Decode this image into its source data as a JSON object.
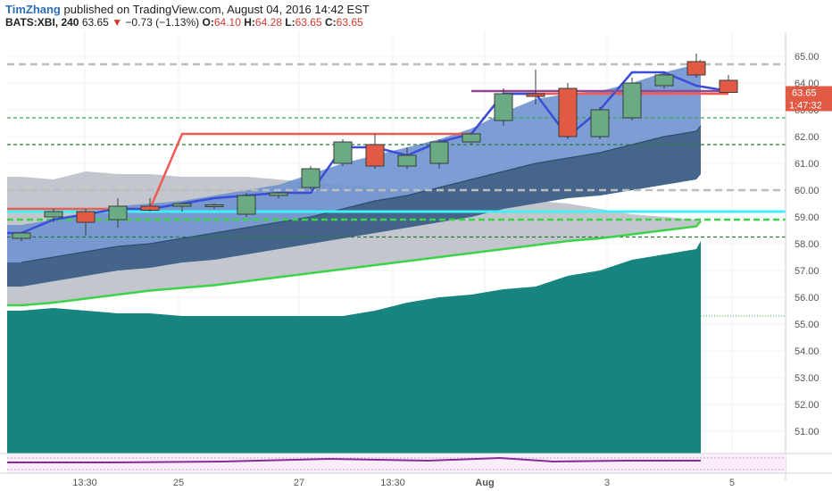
{
  "header": {
    "author": "TimZhang",
    "published_text": "published on TradingView.com, August 04, 2016 14:42 EST",
    "symbol": "BATS:XBI, 240",
    "last": "63.65",
    "change": "−0.73 (−1.13%)",
    "o_label": "O:",
    "o_value": "64.10",
    "h_label": "H:",
    "h_value": "64.28",
    "l_label": "L:",
    "l_value": "63.65",
    "c_label": "C:",
    "c_value": "63.65"
  },
  "colors": {
    "up_candle": "#6aab84",
    "down_candle": "#e05a44",
    "band_blue": "#6f93cf",
    "teal_area": "#17857f",
    "green_line": "#3cd24a",
    "red_line": "#ef5a54",
    "purple_line": "#8e4a8e",
    "blue_line": "#3a4ed8",
    "cyan_line": "#3ff0f5",
    "price_badge": "#e05a44"
  },
  "chart_data": {
    "type": "candlestick",
    "y_axis": {
      "range": [
        50.5,
        65.4
      ],
      "ticks": [
        "65.00",
        "64.00",
        "63.00",
        "62.00",
        "61.00",
        "60.00",
        "59.00",
        "58.00",
        "57.00",
        "56.00",
        "55.00",
        "54.00",
        "53.00",
        "52.00",
        "51.00"
      ]
    },
    "x_axis": {
      "ticks": [
        "13:30",
        "25",
        "27",
        "13:30",
        "Aug",
        "3",
        "5"
      ]
    },
    "last_price_label": "63.65",
    "countdown_label": "1:47:32",
    "candles": [
      {
        "o": 58.2,
        "h": 58.4,
        "l": 58.1,
        "c": 58.4
      },
      {
        "o": 59.0,
        "h": 59.3,
        "l": 58.8,
        "c": 59.2
      },
      {
        "o": 59.2,
        "h": 59.3,
        "l": 58.3,
        "c": 58.8
      },
      {
        "o": 58.9,
        "h": 59.7,
        "l": 58.6,
        "c": 59.4
      },
      {
        "o": 59.4,
        "h": 59.7,
        "l": 59.2,
        "c": 59.25
      },
      {
        "o": 59.4,
        "h": 59.5,
        "l": 59.2,
        "c": 59.5
      },
      {
        "o": 59.4,
        "h": 59.5,
        "l": 59.3,
        "c": 59.45
      },
      {
        "o": 59.1,
        "h": 59.9,
        "l": 59.0,
        "c": 59.8
      },
      {
        "o": 59.8,
        "h": 59.9,
        "l": 59.7,
        "c": 59.9
      },
      {
        "o": 60.1,
        "h": 60.9,
        "l": 60.0,
        "c": 60.8
      },
      {
        "o": 61.0,
        "h": 61.9,
        "l": 60.9,
        "c": 61.8
      },
      {
        "o": 61.7,
        "h": 62.1,
        "l": 60.8,
        "c": 60.9
      },
      {
        "o": 60.9,
        "h": 61.6,
        "l": 60.8,
        "c": 61.3
      },
      {
        "o": 61.0,
        "h": 61.9,
        "l": 60.8,
        "c": 61.8
      },
      {
        "o": 61.8,
        "h": 62.1,
        "l": 61.7,
        "c": 62.1
      },
      {
        "o": 62.6,
        "h": 63.8,
        "l": 62.4,
        "c": 63.6
      },
      {
        "o": 63.6,
        "h": 64.5,
        "l": 63.2,
        "c": 63.5
      },
      {
        "o": 63.8,
        "h": 64.0,
        "l": 61.9,
        "c": 62.0
      },
      {
        "o": 62.0,
        "h": 63.1,
        "l": 61.9,
        "c": 63.0
      },
      {
        "o": 62.7,
        "h": 64.2,
        "l": 62.6,
        "c": 64.0
      },
      {
        "o": 63.9,
        "h": 64.4,
        "l": 63.8,
        "c": 64.3
      },
      {
        "o": 64.8,
        "h": 65.1,
        "l": 64.2,
        "c": 64.3
      },
      {
        "o": 64.1,
        "h": 64.3,
        "l": 63.65,
        "c": 63.65
      }
    ],
    "horizontal_levels": [
      {
        "value": 64.7,
        "color": "#bdbdbd",
        "style": "dashed-wide"
      },
      {
        "value": 62.7,
        "color": "#37a84a",
        "style": "dashed"
      },
      {
        "value": 61.7,
        "color": "#2a7a3a",
        "style": "dashed"
      },
      {
        "value": 60.0,
        "color": "#bdbdbd",
        "style": "dashed-wide"
      },
      {
        "value": 59.2,
        "color": "#3ff0f5",
        "style": "solid"
      },
      {
        "value": 58.9,
        "color": "#3cd24a",
        "style": "dashed-bold"
      },
      {
        "value": 58.25,
        "color": "#2a7a3a",
        "style": "dashed"
      }
    ],
    "short_level": {
      "value": 55.3,
      "color": "#37a84a",
      "style": "dotted"
    },
    "red_line": [
      59.3,
      59.3,
      59.3,
      59.3,
      59.3,
      62.1,
      62.1,
      62.1,
      62.1,
      62.1,
      62.1,
      62.1,
      62.1,
      62.1,
      62.1,
      63.6,
      63.6,
      63.6,
      63.6,
      63.6,
      63.6,
      63.6,
      63.6
    ],
    "blue_line": [
      58.4,
      58.9,
      59.1,
      59.3,
      59.3,
      59.5,
      59.7,
      59.8,
      59.9,
      59.9,
      61.6,
      61.6,
      61.3,
      61.8,
      62.1,
      63.6,
      63.6,
      62.0,
      63.0,
      64.4,
      64.4,
      63.9,
      63.7
    ],
    "purple_line": [
      63.7,
      63.7,
      63.7,
      63.7,
      63.7,
      63.7,
      63.7,
      63.7,
      63.7
    ],
    "band_upper": [
      58.7,
      58.9,
      59.1,
      59.4,
      59.5,
      59.6,
      59.8,
      60.0,
      60.2,
      60.6,
      61.0,
      61.3,
      61.6,
      61.9,
      62.3,
      62.9,
      63.4,
      63.6,
      63.7,
      64.0,
      64.4,
      64.7,
      64.9
    ],
    "band_mid": [
      57.3,
      57.5,
      57.7,
      57.9,
      58.0,
      58.2,
      58.4,
      58.6,
      58.8,
      59.0,
      59.3,
      59.6,
      59.8,
      60.1,
      60.4,
      60.7,
      61.0,
      61.2,
      61.4,
      61.7,
      62.0,
      62.2,
      62.4
    ],
    "band_lower": [
      56.4,
      56.6,
      56.8,
      57.0,
      57.1,
      57.3,
      57.4,
      57.6,
      57.8,
      58.0,
      58.2,
      58.4,
      58.6,
      58.8,
      59.0,
      59.3,
      59.5,
      59.7,
      59.8,
      60.0,
      60.2,
      60.4,
      60.6
    ],
    "ma_green": [
      55.7,
      55.8,
      55.95,
      56.1,
      56.25,
      56.35,
      56.45,
      56.6,
      56.75,
      56.9,
      57.05,
      57.2,
      57.35,
      57.5,
      57.65,
      57.8,
      57.95,
      58.1,
      58.2,
      58.35,
      58.5,
      58.65,
      58.85
    ],
    "teal_top": [
      55.5,
      55.6,
      55.5,
      55.4,
      55.4,
      55.3,
      55.3,
      55.3,
      55.3,
      55.3,
      55.3,
      55.5,
      55.8,
      56.0,
      56.1,
      56.3,
      56.4,
      56.8,
      57.0,
      57.4,
      57.6,
      57.8,
      58.1
    ],
    "cloud_top": [
      60.5,
      60.4,
      60.7,
      60.6,
      60.6,
      60.5,
      60.5,
      60.5,
      60.4,
      60.3,
      60.2,
      60.1,
      60.0,
      59.9,
      59.8,
      59.7,
      59.6,
      59.5,
      59.3,
      59.1,
      59.0,
      58.9,
      58.8
    ]
  }
}
